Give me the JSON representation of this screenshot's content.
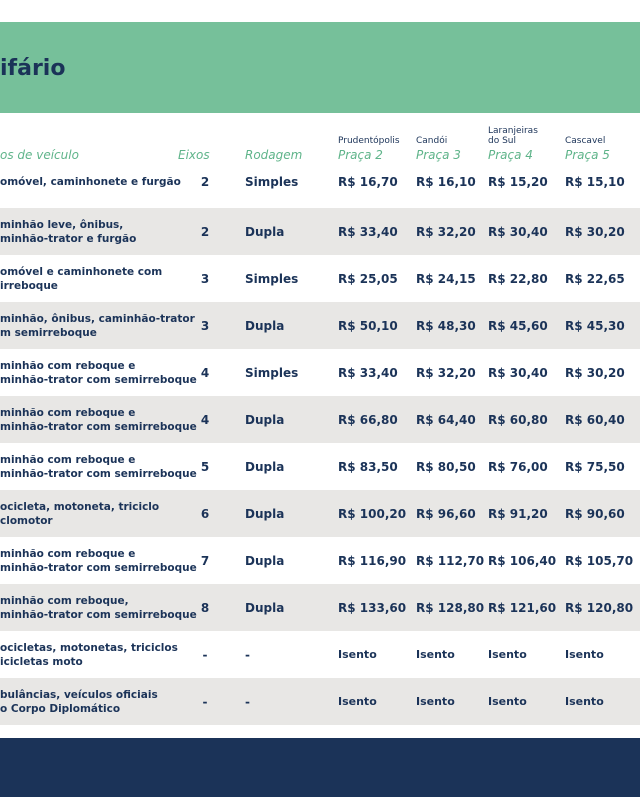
{
  "header": {
    "title": "ifário"
  },
  "table": {
    "headers": {
      "vehicle": "os de veículo",
      "eixos": "Eixos",
      "rodagem": "Rodagem"
    },
    "plazas": [
      {
        "city": "Prudentópolis",
        "label": "Praça 2"
      },
      {
        "city": "Candói",
        "label": "Praça 3"
      },
      {
        "city": "Laranjeiras\ndo Sul",
        "label": "Praça 4"
      },
      {
        "city": "Cascavel",
        "label": "Praça 5"
      }
    ],
    "rows": [
      [
        "omóvel, caminhonete e furgão",
        "2",
        "Simples",
        "R$ 16,70",
        "R$ 16,10",
        "R$ 15,20",
        "R$ 15,10"
      ],
      [
        "minhão leve, ônibus,\nminhão-trator e furgão",
        "2",
        "Dupla",
        "R$ 33,40",
        "R$ 32,20",
        "R$ 30,40",
        "R$ 30,20"
      ],
      [
        "omóvel e caminhonete com\nirreboque",
        "3",
        "Simples",
        "R$ 25,05",
        "R$ 24,15",
        "R$ 22,80",
        "R$ 22,65"
      ],
      [
        "minhão, ônibus, caminhão-trator\nm semirreboque",
        "3",
        "Dupla",
        "R$ 50,10",
        "R$ 48,30",
        "R$ 45,60",
        "R$ 45,30"
      ],
      [
        "minhão com reboque e\nminhão-trator com semirreboque",
        "4",
        "Simples",
        "R$ 33,40",
        "R$ 32,20",
        "R$ 30,40",
        "R$ 30,20"
      ],
      [
        "minhão com reboque e\nminhão-trator com semirreboque",
        "4",
        "Dupla",
        "R$ 66,80",
        "R$ 64,40",
        "R$ 60,80",
        "R$ 60,40"
      ],
      [
        "minhão com reboque e\nminhão-trator com semirreboque",
        "5",
        "Dupla",
        "R$ 83,50",
        "R$ 80,50",
        "R$ 76,00",
        "R$ 75,50"
      ],
      [
        "ocicleta, motoneta, triciclo\nclomotor",
        "6",
        "Dupla",
        "R$ 100,20",
        "R$ 96,60",
        "R$ 91,20",
        "R$ 90,60"
      ],
      [
        "minhão com reboque e\nminhão-trator com semirreboque",
        "7",
        "Dupla",
        "R$ 116,90",
        "R$ 112,70",
        "R$ 106,40",
        "R$ 105,70"
      ],
      [
        "minhão com reboque,\nminhão-trator com semirreboque",
        "8",
        "Dupla",
        "R$ 133,60",
        "R$ 128,80",
        "R$ 121,60",
        "R$ 120,80"
      ],
      [
        "ocicletas, motonetas, triciclos\nicicletas moto",
        "-",
        "-",
        "Isento",
        "Isento",
        "Isento",
        "Isento"
      ],
      [
        "bulâncias, veículos oficiais\no Corpo Diplomático",
        "-",
        "-",
        "Isento",
        "Isento",
        "Isento",
        "Isento"
      ]
    ]
  }
}
